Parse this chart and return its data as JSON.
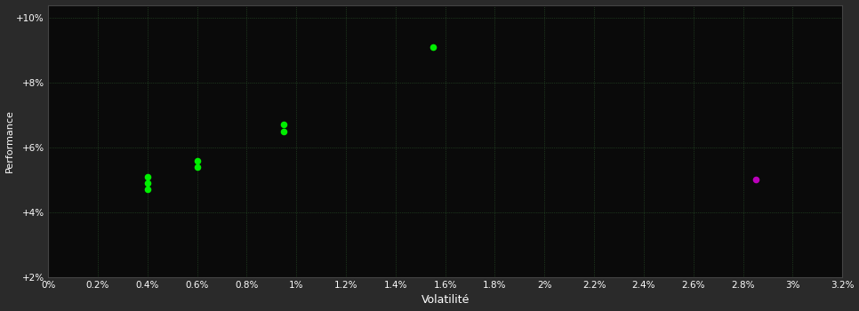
{
  "green_points": [
    [
      0.004,
      0.051
    ],
    [
      0.004,
      0.049
    ],
    [
      0.004,
      0.047
    ],
    [
      0.006,
      0.056
    ],
    [
      0.006,
      0.054
    ],
    [
      0.0095,
      0.067
    ],
    [
      0.0095,
      0.065
    ],
    [
      0.0155,
      0.091
    ]
  ],
  "magenta_points": [
    [
      0.0285,
      0.05
    ]
  ],
  "green_color": "#00ee00",
  "magenta_color": "#bb00bb",
  "background_color": "#2a2a2a",
  "plot_bg_color": "#0a0a0a",
  "grid_color": "#2d5a2d",
  "text_color": "#ffffff",
  "xlabel": "Volatilité",
  "ylabel": "Performance",
  "xlim": [
    0.0,
    0.032
  ],
  "ylim": [
    0.02,
    0.104
  ],
  "xticks": [
    0.0,
    0.002,
    0.004,
    0.006,
    0.008,
    0.01,
    0.012,
    0.014,
    0.016,
    0.018,
    0.02,
    0.022,
    0.024,
    0.026,
    0.028,
    0.03,
    0.032
  ],
  "yticks": [
    0.02,
    0.04,
    0.06,
    0.08,
    0.1
  ],
  "xtick_labels": [
    "0%",
    "0.2%",
    "0.4%",
    "0.6%",
    "0.8%",
    "1%",
    "1.2%",
    "1.4%",
    "1.6%",
    "1.8%",
    "2%",
    "2.2%",
    "2.4%",
    "2.6%",
    "2.8%",
    "3%",
    "3.2%"
  ],
  "ytick_labels": [
    "+2%",
    "+4%",
    "+6%",
    "+8%",
    "+10%"
  ],
  "marker_size": 30,
  "figsize": [
    9.66,
    3.5
  ],
  "dpi": 100
}
